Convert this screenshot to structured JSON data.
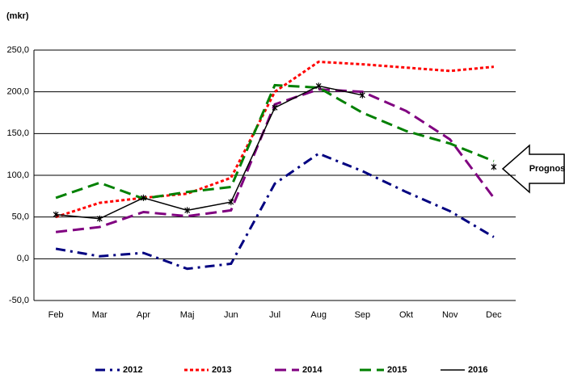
{
  "chart_data": {
    "type": "line",
    "title": "(mkr)",
    "categories": [
      "Feb",
      "Mar",
      "Apr",
      "Maj",
      "Jun",
      "Jul",
      "Aug",
      "Sep",
      "Okt",
      "Nov",
      "Dec"
    ],
    "series": [
      {
        "name": "2012",
        "color": "#000080",
        "values": [
          12,
          3,
          7,
          -12,
          -6,
          90,
          126,
          105,
          80,
          57,
          26
        ]
      },
      {
        "name": "2013",
        "color": "#ff0000",
        "values": [
          50,
          67,
          73,
          78,
          97,
          200,
          236,
          233,
          229,
          225,
          230
        ]
      },
      {
        "name": "2014",
        "color": "#800080",
        "values": [
          32,
          38,
          56,
          51,
          58,
          185,
          203,
          200,
          177,
          143,
          73
        ]
      },
      {
        "name": "2015",
        "color": "#008000",
        "values": [
          73,
          91,
          72,
          80,
          86,
          208,
          205,
          175,
          153,
          138,
          117
        ]
      },
      {
        "name": "2016",
        "color": "#000000",
        "values": [
          53,
          48,
          73,
          58,
          68,
          181,
          207,
          196,
          null,
          null,
          110
        ]
      }
    ],
    "ylim": [
      -50,
      250
    ],
    "yticks": [
      {
        "value": -50,
        "label": "-50,0"
      },
      {
        "value": 0,
        "label": "0,0"
      },
      {
        "value": 50,
        "label": "50,0"
      },
      {
        "value": 100,
        "label": "100,0"
      },
      {
        "value": 150,
        "label": "150,0"
      },
      {
        "value": 200,
        "label": "200,0"
      },
      {
        "value": 250,
        "label": "250,0"
      }
    ],
    "grid": true,
    "annotation": "Prognos"
  }
}
